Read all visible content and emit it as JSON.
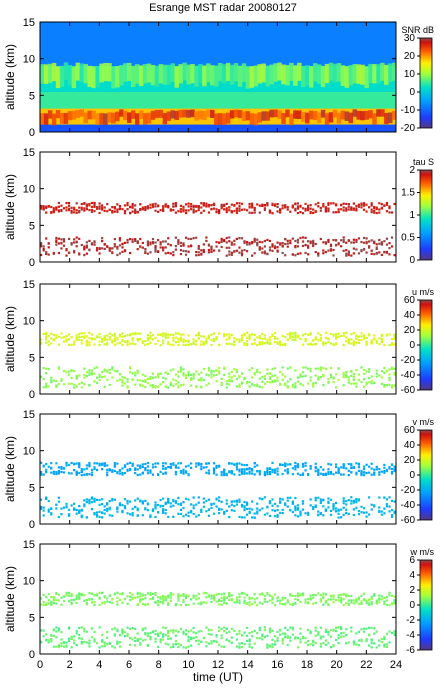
{
  "title": "Esrange MST radar 20080127",
  "chart_data": [
    {
      "type": "heatmap",
      "panel": "SNR",
      "ylabel": "altitude (km)",
      "ylim": [
        0,
        15
      ],
      "yticks": [
        0,
        5,
        10,
        15
      ],
      "xlim": [
        0,
        24
      ],
      "colorbar": {
        "label": "SNR dB",
        "range": [
          -20,
          30
        ],
        "ticks": [
          30,
          20,
          10,
          0,
          -10,
          -20
        ]
      },
      "layers": [
        {
          "altitude_km": [
            1.0,
            3.2
          ],
          "value": 18
        },
        {
          "altitude_km": [
            3.2,
            5.5
          ],
          "value": 5
        },
        {
          "altitude_km": [
            5.5,
            9.0
          ],
          "value": 2
        },
        {
          "altitude_km": [
            9.0,
            15.0
          ],
          "value": -8
        },
        {
          "altitude_km": [
            0.0,
            1.0
          ],
          "value": -12
        }
      ],
      "features": [
        {
          "time_ut": [
            0,
            24
          ],
          "altitude_km": [
            6.5,
            9.2
          ],
          "value": 8
        },
        {
          "time_ut": [
            0,
            24
          ],
          "altitude_km": [
            1.5,
            2.8
          ],
          "value": 25
        }
      ]
    },
    {
      "type": "heatmap",
      "panel": "tau",
      "ylabel": "altitude (km)",
      "ylim": [
        0,
        15
      ],
      "yticks": [
        0,
        5,
        10,
        15
      ],
      "xlim": [
        0,
        24
      ],
      "colorbar": {
        "label": "tau S",
        "range": [
          0,
          2
        ],
        "ticks": [
          2,
          1.5,
          1,
          0.5,
          0
        ]
      },
      "layers": [
        {
          "time_ut": [
            0,
            24
          ],
          "altitude_km": [
            1.0,
            3.5
          ],
          "value": 1.95
        },
        {
          "time_ut": [
            0,
            24
          ],
          "altitude_km": [
            6.8,
            8.2
          ],
          "value": 1.9
        }
      ]
    },
    {
      "type": "heatmap",
      "panel": "u",
      "ylabel": "altitude (km)",
      "ylim": [
        0,
        15
      ],
      "yticks": [
        0,
        5,
        10,
        15
      ],
      "xlim": [
        0,
        24
      ],
      "colorbar": {
        "label": "u m/s",
        "range": [
          -60,
          60
        ],
        "ticks": [
          60,
          40,
          20,
          0,
          -20,
          -40,
          -60
        ]
      },
      "layers": [
        {
          "time_ut": [
            0,
            24
          ],
          "altitude_km": [
            1.0,
            3.8
          ],
          "value": 10
        },
        {
          "time_ut": [
            0,
            24
          ],
          "altitude_km": [
            6.8,
            8.5
          ],
          "value": 20
        }
      ]
    },
    {
      "type": "heatmap",
      "panel": "v",
      "ylabel": "altitude (km)",
      "ylim": [
        0,
        15
      ],
      "yticks": [
        0,
        5,
        10,
        15
      ],
      "xlim": [
        0,
        24
      ],
      "colorbar": {
        "label": "v m/s",
        "range": [
          -60,
          60
        ],
        "ticks": [
          60,
          40,
          20,
          0,
          -20,
          -40,
          -60
        ]
      },
      "layers": [
        {
          "time_ut": [
            0,
            24
          ],
          "altitude_km": [
            1.0,
            3.8
          ],
          "value": -18
        },
        {
          "time_ut": [
            0,
            24
          ],
          "altitude_km": [
            6.8,
            8.5
          ],
          "value": -22
        }
      ]
    },
    {
      "type": "heatmap",
      "panel": "w",
      "ylabel": "altitude (km)",
      "xlabel": "time (UT)",
      "ylim": [
        0,
        15
      ],
      "yticks": [
        0,
        5,
        10,
        15
      ],
      "xlim": [
        0,
        24
      ],
      "xticks": [
        0,
        2,
        4,
        6,
        8,
        10,
        12,
        14,
        16,
        18,
        20,
        22,
        24
      ],
      "colorbar": {
        "label": "w m/s",
        "range": [
          -6,
          6
        ],
        "ticks": [
          6,
          4,
          2,
          0,
          -2,
          -4,
          -6
        ]
      },
      "layers": [
        {
          "time_ut": [
            0,
            24
          ],
          "altitude_km": [
            1.0,
            3.8
          ],
          "value": 0.5
        },
        {
          "time_ut": [
            0,
            24
          ],
          "altitude_km": [
            6.8,
            8.5
          ],
          "value": 0.8
        }
      ]
    }
  ]
}
